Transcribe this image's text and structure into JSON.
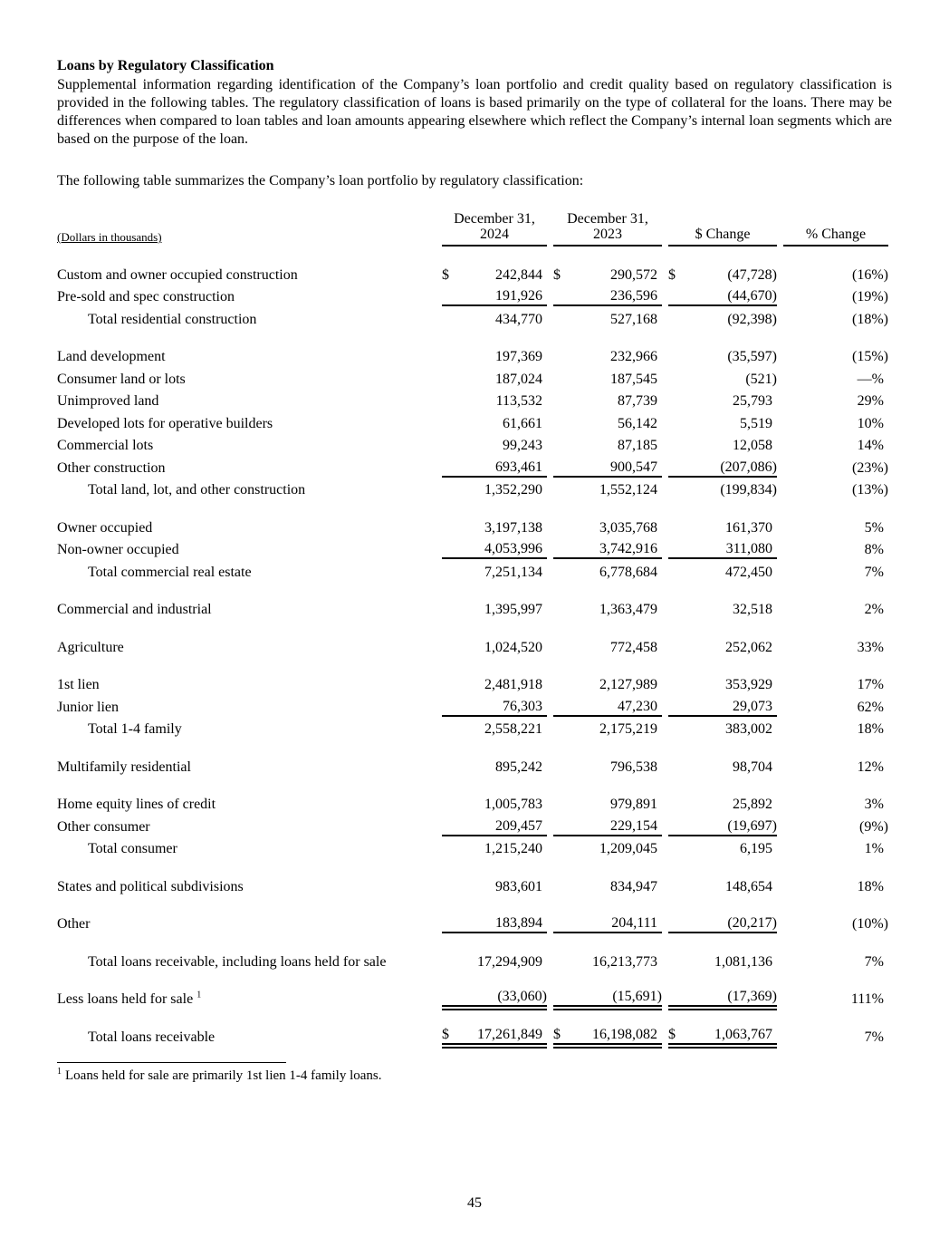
{
  "page": {
    "heading": "Loans by Regulatory Classification",
    "intro": "Supplemental information regarding identification of the Company’s loan portfolio and credit quality based on regulatory classification is provided in the following tables.  The regulatory classification of loans is based primarily on the type of collateral for the loans.  There may be differences when compared to loan tables and loan amounts appearing elsewhere which reflect the Company’s internal loan segments which are based on the purpose of the loan.",
    "table_caption": "The following table summarizes the Company’s loan portfolio by regulatory classification:",
    "footnote_marker": "1",
    "footnote_text": "Loans held for sale are primarily 1st lien 1-4 family loans.",
    "page_number": "45"
  },
  "table": {
    "left_header": "(Dollars in thousands)",
    "currency_symbol": "$",
    "columns": [
      {
        "line1": "December 31,",
        "line2": "2024"
      },
      {
        "line1": "December 31,",
        "line2": "2023"
      },
      {
        "line1": "$ Change"
      },
      {
        "line1": "% Change"
      }
    ],
    "rows": [
      {
        "label": "Custom and owner occupied construction",
        "cur": true,
        "vals": [
          "242,844",
          "290,572",
          "(47,728)"
        ],
        "pct": "(16%)"
      },
      {
        "label": "Pre-sold and spec construction",
        "vals": [
          "191,926",
          "236,596",
          "(44,670)"
        ],
        "pct": "(19%)",
        "rule": "single"
      },
      {
        "label": "Total residential construction",
        "indent": true,
        "vals": [
          "434,770",
          "527,168",
          "(92,398)"
        ],
        "pct": "(18%)"
      },
      {
        "spacer": true
      },
      {
        "label": "Land development",
        "vals": [
          "197,369",
          "232,966",
          "(35,597)"
        ],
        "pct": "(15%)"
      },
      {
        "label": "Consumer land or lots",
        "vals": [
          "187,024",
          "187,545",
          "(521)"
        ],
        "pct": "—%"
      },
      {
        "label": "Unimproved land",
        "vals": [
          "113,532",
          "87,739",
          "25,793"
        ],
        "pct": "29%"
      },
      {
        "label": "Developed lots for operative builders",
        "vals": [
          "61,661",
          "56,142",
          "5,519"
        ],
        "pct": "10%"
      },
      {
        "label": "Commercial lots",
        "vals": [
          "99,243",
          "87,185",
          "12,058"
        ],
        "pct": "14%"
      },
      {
        "label": "Other construction",
        "vals": [
          "693,461",
          "900,547",
          "(207,086)"
        ],
        "pct": "(23%)",
        "rule": "single"
      },
      {
        "label": "Total land, lot, and other construction",
        "indent": true,
        "vals": [
          "1,352,290",
          "1,552,124",
          "(199,834)"
        ],
        "pct": "(13%)"
      },
      {
        "spacer": true
      },
      {
        "label": "Owner occupied",
        "vals": [
          "3,197,138",
          "3,035,768",
          "161,370"
        ],
        "pct": "5%"
      },
      {
        "label": "Non-owner occupied",
        "vals": [
          "4,053,996",
          "3,742,916",
          "311,080"
        ],
        "pct": "8%",
        "rule": "single"
      },
      {
        "label": "Total commercial real estate",
        "indent": true,
        "vals": [
          "7,251,134",
          "6,778,684",
          "472,450"
        ],
        "pct": "7%"
      },
      {
        "spacer": true
      },
      {
        "label": "Commercial and industrial",
        "vals": [
          "1,395,997",
          "1,363,479",
          "32,518"
        ],
        "pct": "2%"
      },
      {
        "spacer": true
      },
      {
        "label": "Agriculture",
        "vals": [
          "1,024,520",
          "772,458",
          "252,062"
        ],
        "pct": "33%"
      },
      {
        "spacer": true
      },
      {
        "label": "1st lien",
        "vals": [
          "2,481,918",
          "2,127,989",
          "353,929"
        ],
        "pct": "17%"
      },
      {
        "label": "Junior lien",
        "vals": [
          "76,303",
          "47,230",
          "29,073"
        ],
        "pct": "62%",
        "rule": "single"
      },
      {
        "label": "Total 1-4 family",
        "indent": true,
        "vals": [
          "2,558,221",
          "2,175,219",
          "383,002"
        ],
        "pct": "18%"
      },
      {
        "spacer": true
      },
      {
        "label": "Multifamily residential",
        "vals": [
          "895,242",
          "796,538",
          "98,704"
        ],
        "pct": "12%"
      },
      {
        "spacer": true
      },
      {
        "label": "Home equity lines of credit",
        "vals": [
          "1,005,783",
          "979,891",
          "25,892"
        ],
        "pct": "3%"
      },
      {
        "label": "Other consumer",
        "vals": [
          "209,457",
          "229,154",
          "(19,697)"
        ],
        "pct": "(9%)",
        "rule": "single"
      },
      {
        "label": "Total consumer",
        "indent": true,
        "vals": [
          "1,215,240",
          "1,209,045",
          "6,195"
        ],
        "pct": "1%"
      },
      {
        "spacer": true
      },
      {
        "label": "States and political subdivisions",
        "vals": [
          "983,601",
          "834,947",
          "148,654"
        ],
        "pct": "18%"
      },
      {
        "spacer": true
      },
      {
        "label": "Other",
        "vals": [
          "183,894",
          "204,111",
          "(20,217)"
        ],
        "pct": "(10%)",
        "rule": "single"
      },
      {
        "spacer": true
      },
      {
        "label": "Total loans receivable, including loans held for sale",
        "indent": true,
        "vals": [
          "17,294,909",
          "16,213,773",
          "1,081,136"
        ],
        "pct": "7%"
      },
      {
        "spacer": true
      },
      {
        "label": "Less loans held for sale",
        "sup": "1",
        "vals": [
          "(33,060)",
          "(15,691)",
          "(17,369)"
        ],
        "pct": "111%",
        "rule": "double"
      },
      {
        "spacer": true
      },
      {
        "label": "Total loans receivable",
        "indent": true,
        "cur": true,
        "vals": [
          "17,261,849",
          "16,198,082",
          "1,063,767"
        ],
        "pct": "7%",
        "rule": "double"
      }
    ]
  }
}
